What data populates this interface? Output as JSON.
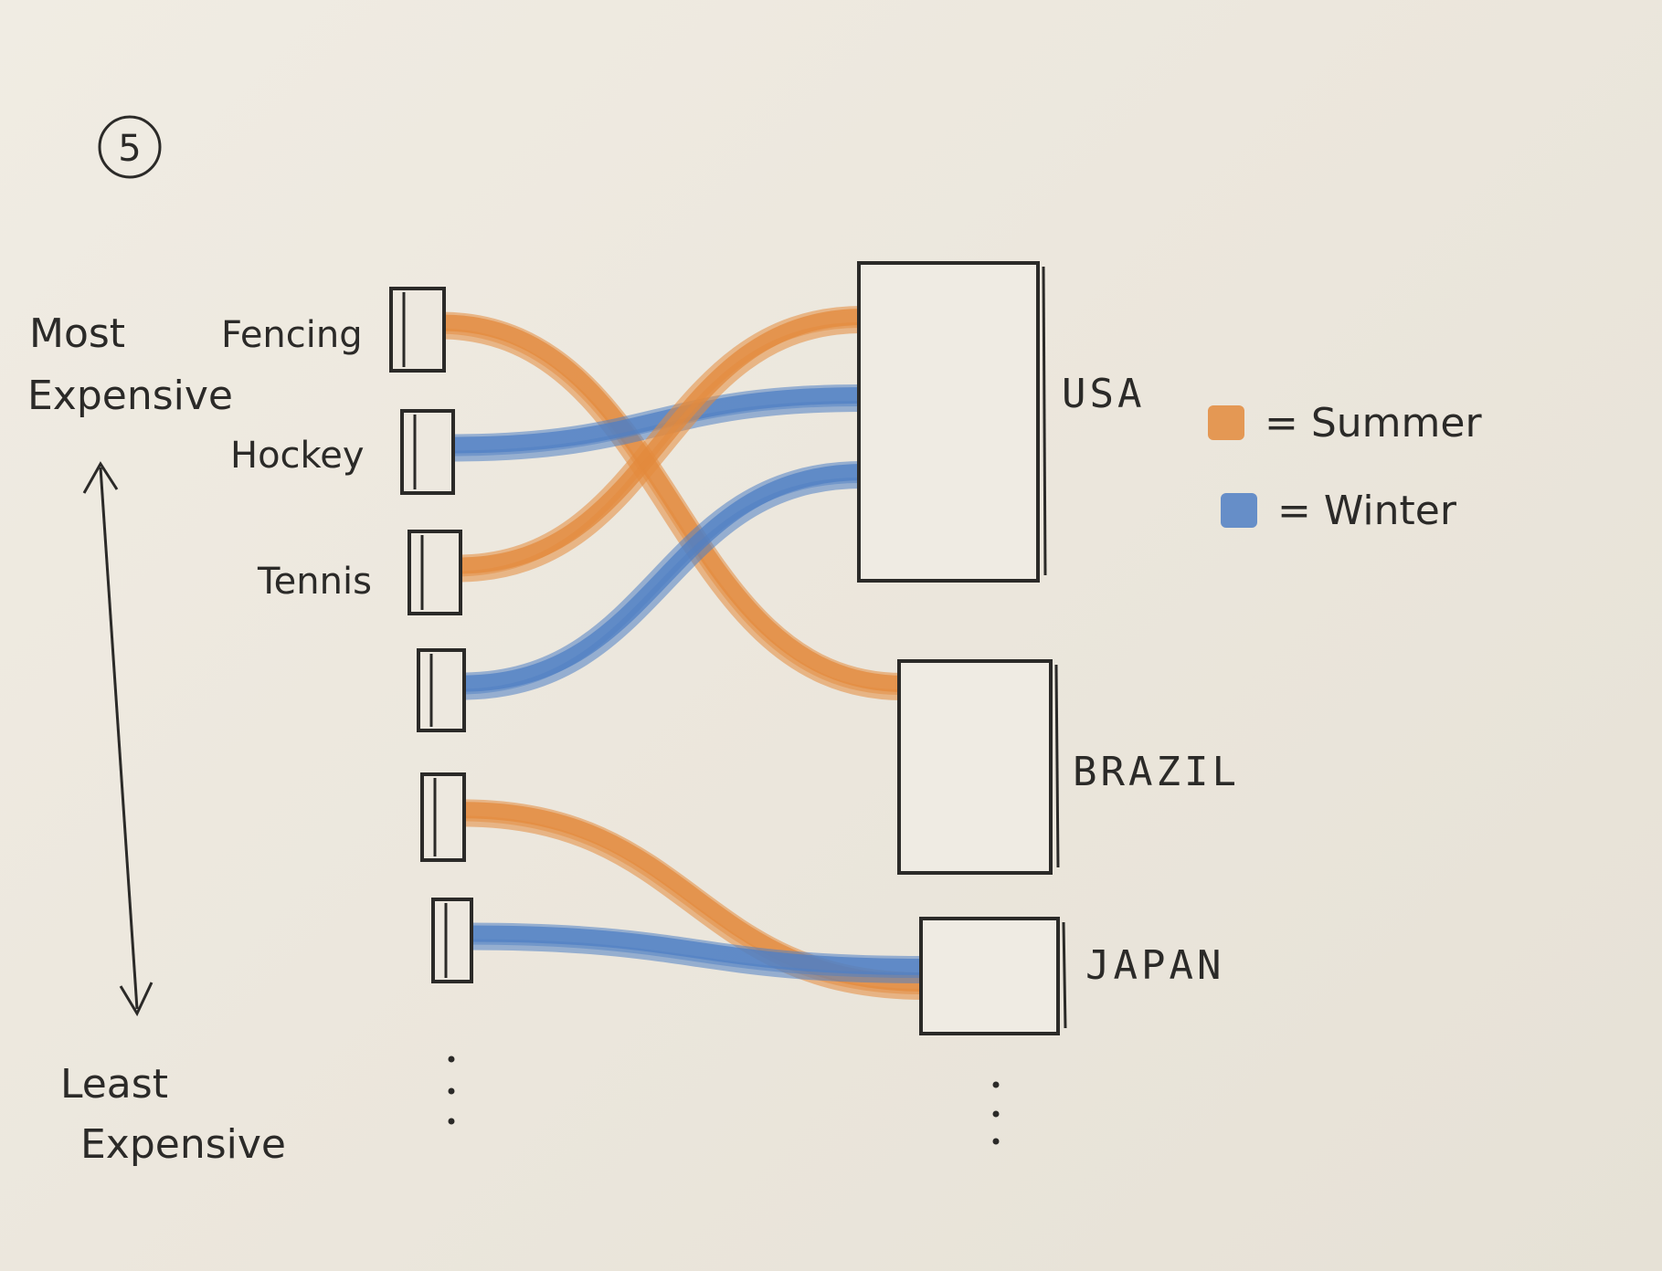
{
  "page_number": "5",
  "axis": {
    "top_label_line1": "Most",
    "top_label_line2": "Expensive",
    "bottom_label_line1": "Least",
    "bottom_label_line2": "Expensive"
  },
  "sports": [
    {
      "label": "Fencing"
    },
    {
      "label": "Hockey"
    },
    {
      "label": "Tennis"
    },
    {
      "label": ""
    },
    {
      "label": ""
    },
    {
      "label": ""
    }
  ],
  "countries": [
    {
      "label": "USA"
    },
    {
      "label": "BRAZIL"
    },
    {
      "label": "JAPAN"
    }
  ],
  "legend": [
    {
      "label": "= Summer",
      "color": "#e38a3c",
      "season": "summer"
    },
    {
      "label": "= Winter",
      "color": "#4f7fc4",
      "season": "winter"
    }
  ],
  "flows": [
    {
      "from": 0,
      "to": 1,
      "season": "summer"
    },
    {
      "from": 1,
      "to": 0,
      "season": "winter"
    },
    {
      "from": 2,
      "to": 0,
      "season": "summer"
    },
    {
      "from": 3,
      "to": 0,
      "season": "winter"
    },
    {
      "from": 4,
      "to": 2,
      "season": "summer"
    },
    {
      "from": 5,
      "to": 2,
      "season": "winter"
    }
  ],
  "colors": {
    "summer": "#e38a3c",
    "winter": "#4f7fc4",
    "ink": "#2b2a28"
  }
}
